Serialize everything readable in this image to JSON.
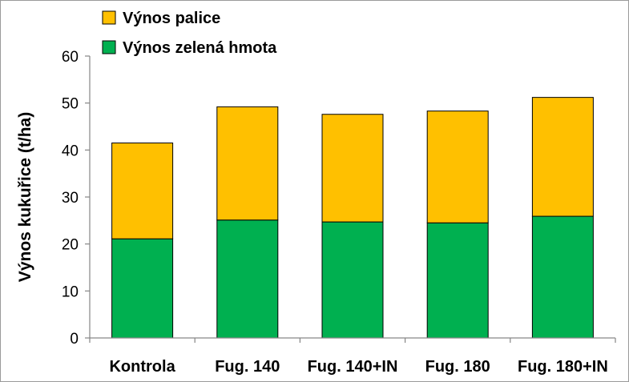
{
  "chart_data": {
    "type": "bar",
    "stacked": true,
    "categories": [
      "Kontrola",
      "Fug. 140",
      "Fug. 140+IN",
      "Fug. 180",
      "Fug. 180+IN"
    ],
    "series": [
      {
        "name": "Výnos zelená hmota",
        "color": "#00b050",
        "values": [
          21.1,
          25.1,
          24.7,
          24.5,
          25.9
        ]
      },
      {
        "name": "Výnos palice",
        "color": "#ffc000",
        "values": [
          20.4,
          24.1,
          22.9,
          23.8,
          25.3
        ]
      }
    ],
    "ylabel": "Výnos kukuřice (t/ha)",
    "ylim": [
      0,
      60
    ],
    "yticks": [
      0,
      10,
      20,
      30,
      40,
      50,
      60
    ],
    "grid": false,
    "legend_position": "top-left",
    "legend_order": [
      "Výnos palice",
      "Výnos zelená hmota"
    ]
  }
}
